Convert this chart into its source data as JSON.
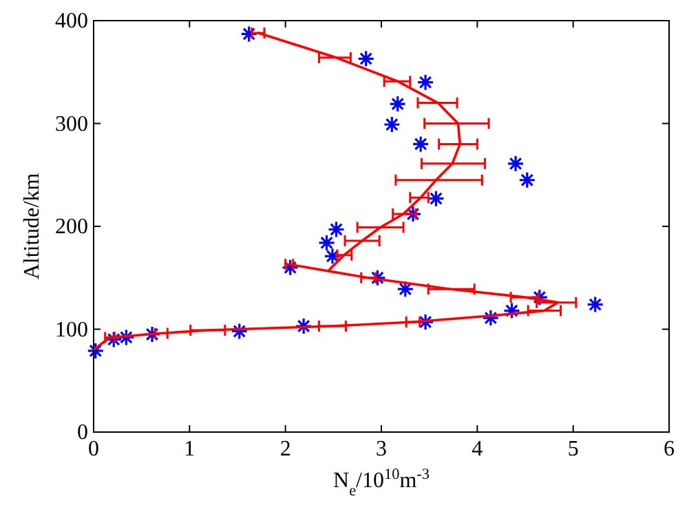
{
  "chart_data": {
    "type": "scatter",
    "xlabel": "N$_{e}$/10$^{10}$m$^{-3}$",
    "ylabel": "Altitude/km",
    "xlim": [
      0,
      6
    ],
    "xticks": [
      0,
      1,
      2,
      3,
      4,
      5,
      6
    ],
    "ylim": [
      0,
      400
    ],
    "yticks": [
      0,
      100,
      200,
      300,
      400
    ],
    "grid": false,
    "series": [
      {
        "color": "#0000ff",
        "marker": "cross",
        "x": [
          1.62,
          2.84,
          3.46,
          3.17,
          3.11,
          3.41,
          4.4,
          4.52,
          3.57,
          3.33,
          2.53,
          2.43,
          2.49,
          2.05,
          2.96,
          3.25,
          4.65,
          5.23,
          4.36,
          4.14,
          3.46,
          2.19,
          1.52,
          0.61,
          0.34,
          0.21,
          0.02
        ],
        "values": [
          387,
          363,
          340,
          319,
          299,
          280,
          261,
          245,
          227,
          212,
          197,
          184,
          171,
          160,
          150,
          139,
          131,
          124,
          118,
          111,
          107,
          103,
          98,
          95,
          92,
          90,
          79
        ]
      },
      {
        "type": "line",
        "color": "#ff0000",
        "marker": "none",
        "line_style": "solid",
        "x": [
          1.72,
          2.53,
          3.17,
          3.59,
          3.8,
          3.82,
          3.74,
          3.57,
          3.41,
          3.23,
          2.99,
          2.8,
          2.61,
          2.46
        ],
        "values": [
          388,
          364,
          341,
          320,
          300,
          280,
          261,
          245,
          228,
          212,
          199,
          186,
          172,
          158
        ],
        "xerrors": [
          [
            1.65,
            1.78
          ],
          [
            2.35,
            2.68
          ],
          [
            3.03,
            3.3
          ],
          [
            3.38,
            3.79
          ],
          [
            3.45,
            4.12
          ],
          [
            3.6,
            4.0
          ],
          [
            3.42,
            4.08
          ],
          [
            3.15,
            4.05
          ],
          [
            3.3,
            3.49
          ],
          [
            3.12,
            3.36
          ],
          [
            2.75,
            3.23
          ],
          [
            2.62,
            2.98
          ],
          [
            2.54,
            2.69
          ],
          null
        ]
      },
      {
        "type": "line",
        "color": "#ff0000",
        "marker": "none",
        "line_style": "solid",
        "x": [
          2.04,
          2.86,
          3.72,
          4.5,
          4.84,
          4.7,
          4.14,
          3.33,
          2.49,
          1.19,
          0.7,
          0.17,
          0
        ],
        "values": [
          163,
          150,
          139,
          131,
          126,
          118,
          113,
          107,
          103,
          99,
          96,
          92,
          80
        ],
        "xerrors": [
          [
            2.0,
            2.08
          ],
          [
            2.79,
            2.94
          ],
          [
            3.49,
            3.97
          ],
          [
            4.35,
            4.64
          ],
          [
            4.62,
            5.03
          ],
          [
            4.53,
            4.87
          ],
          null,
          [
            3.26,
            3.4
          ],
          [
            2.35,
            2.63
          ],
          [
            1.01,
            1.37
          ],
          [
            0.64,
            0.77
          ],
          [
            0.12,
            0.22
          ],
          null
        ]
      }
    ]
  }
}
